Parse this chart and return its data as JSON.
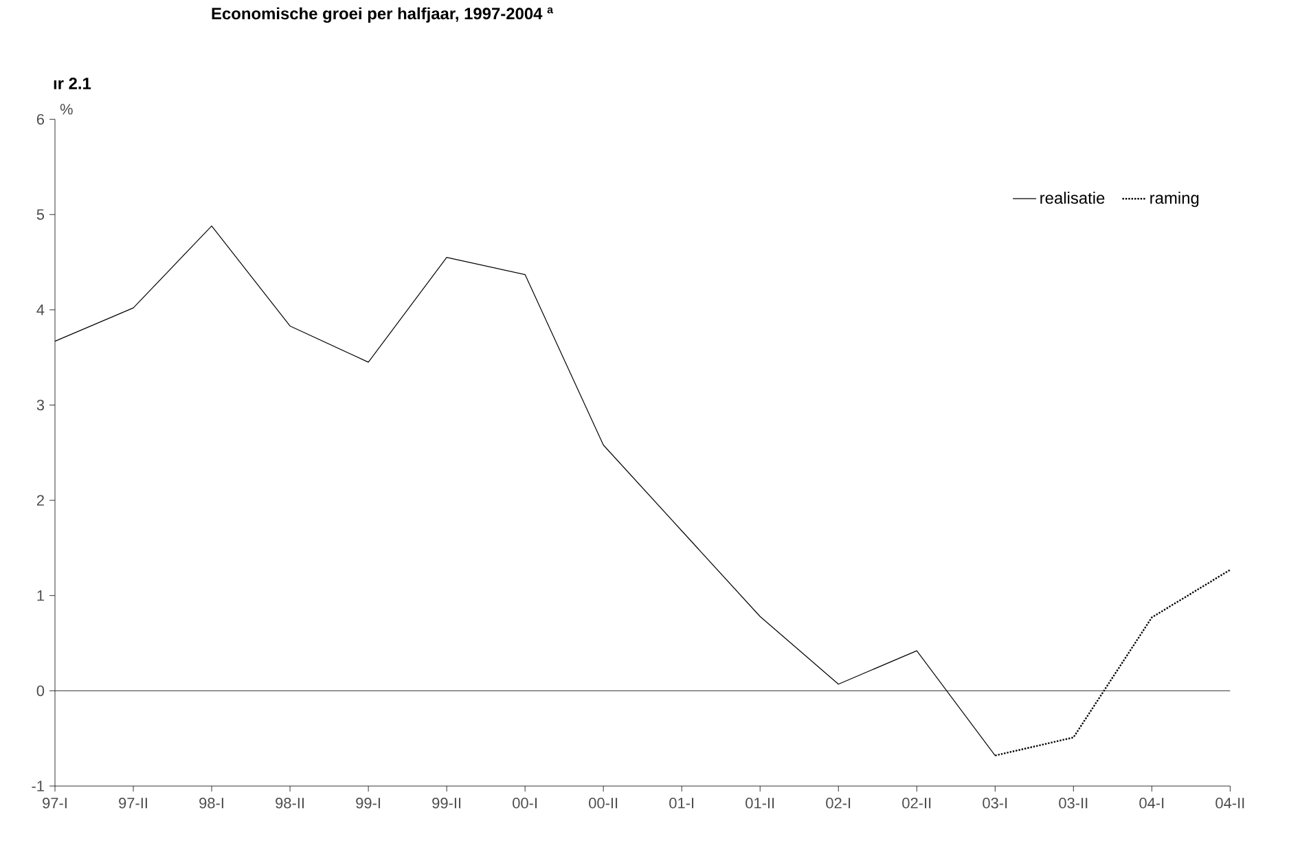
{
  "chart_data": {
    "type": "line",
    "title": "Economische groei per halfjaar, 1997-2004 $^{a}$",
    "annotations": [
      "ır 2.1"
    ],
    "ylabel": "%",
    "categories": [
      "97-I",
      "97-II",
      "98-I",
      "98-II",
      "99-I",
      "99-II",
      "00-I",
      "00-II",
      "01-I",
      "01-II",
      "02-I",
      "02-II",
      "03-I",
      "03-II",
      "04-I",
      "04-II"
    ],
    "series": [
      {
        "name": "realisatie",
        "color": "#000000",
        "line_style": "solid",
        "values": [
          3.67,
          4.02,
          4.88,
          3.83,
          3.45,
          4.55,
          4.37,
          2.58,
          1.68,
          0.78,
          0.07,
          0.42,
          -0.68,
          null,
          null,
          null
        ]
      },
      {
        "name": "raming",
        "color": "#000000",
        "line_style": "dotted",
        "values": [
          null,
          null,
          null,
          null,
          null,
          null,
          null,
          null,
          null,
          null,
          null,
          null,
          -0.68,
          -0.49,
          0.77,
          1.27
        ]
      }
    ],
    "ylim": [
      -1,
      6
    ],
    "yticks": [
      -1,
      0,
      1,
      2,
      3,
      4,
      5,
      6
    ],
    "grid": false,
    "legend": "top right",
    "marker": "none",
    "ref_lines": [
      {
        "axis": "y",
        "value": 0,
        "color": "#000000"
      }
    ]
  }
}
